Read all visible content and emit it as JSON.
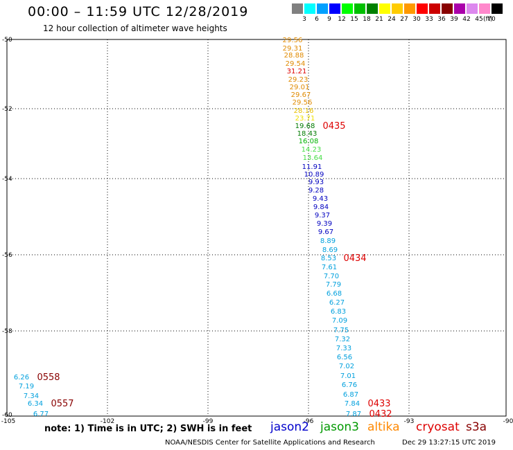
{
  "header": {
    "title": "00:00 – 11:59 UTC 12/28/2019",
    "subtitle": "12 hour collection of altimeter wave heights"
  },
  "legend": {
    "colors": [
      "#808080",
      "#00ffff",
      "#00a0ff",
      "#0000ff",
      "#00ff00",
      "#00c000",
      "#008000",
      "#ffff00",
      "#ffcc00",
      "#ff9900",
      "#ff0000",
      "#cc0000",
      "#880000",
      "#aa00aa",
      "#dd88ee",
      "#ff88cc",
      "#000000"
    ],
    "labels": [
      "3",
      "6",
      "9",
      "12",
      "15",
      "18",
      "21",
      "24",
      "27",
      "30",
      "33",
      "36",
      "39",
      "42",
      "45",
      "70",
      "(ft)"
    ]
  },
  "axes": {
    "x_ticks": [
      "-105",
      "-102",
      "-99",
      "-96",
      "-93",
      "-90"
    ],
    "y_ticks": [
      "-50",
      "-52",
      "-54",
      "-56",
      "-58",
      "-60"
    ]
  },
  "map": {
    "series": {
      "main_track": [
        {
          "label": "29.56",
          "color": "#e08a00"
        },
        {
          "label": "29.31",
          "color": "#e08a00"
        },
        {
          "label": "28.88",
          "color": "#e08a00"
        },
        {
          "label": "29.54",
          "color": "#e08a00"
        },
        {
          "label": "31.21",
          "color": "#dd0000"
        },
        {
          "label": "29.23",
          "color": "#e08a00"
        },
        {
          "label": "29.01",
          "color": "#e08a00"
        },
        {
          "label": "29.67",
          "color": "#e08a00"
        },
        {
          "label": "29.56",
          "color": "#e08a00"
        },
        {
          "label": "28.16",
          "color": "#e8c000"
        },
        {
          "label": "23.71",
          "color": "#f0e000"
        },
        {
          "label": "19.68",
          "color": "#007a00"
        },
        {
          "label": "18.43",
          "color": "#007a00"
        },
        {
          "label": "16.08",
          "color": "#00b400"
        },
        {
          "label": "14.23",
          "color": "#44dd44"
        },
        {
          "label": "13.64",
          "color": "#44dd44"
        },
        {
          "label": "11.91",
          "color": "#0000c0"
        },
        {
          "label": "10.89",
          "color": "#0000c0"
        },
        {
          "label": "9.93",
          "color": "#0000c0"
        },
        {
          "label": "9.28",
          "color": "#0000c0"
        },
        {
          "label": "9.43",
          "color": "#0000c0"
        },
        {
          "label": "9.84",
          "color": "#0000c0"
        },
        {
          "label": "9.37",
          "color": "#0000c0"
        },
        {
          "label": "9.39",
          "color": "#0000c0"
        },
        {
          "label": "9.67",
          "color": "#0000c0"
        },
        {
          "label": "8.89",
          "color": "#00a0dd"
        },
        {
          "label": "8.69",
          "color": "#00a0dd"
        },
        {
          "label": "8.53",
          "color": "#00a0dd"
        },
        {
          "label": "7.61",
          "color": "#00a0dd"
        },
        {
          "label": "7.70",
          "color": "#00a0dd"
        },
        {
          "label": "7.79",
          "color": "#00a0dd"
        },
        {
          "label": "6.68",
          "color": "#00a0dd"
        },
        {
          "label": "6.27",
          "color": "#00a0dd"
        },
        {
          "label": "6.83",
          "color": "#00a0dd"
        },
        {
          "label": "7.09",
          "color": "#00a0dd"
        },
        {
          "label": "7.75",
          "color": "#00a0dd"
        },
        {
          "label": "7.32",
          "color": "#00a0dd"
        },
        {
          "label": "7.33",
          "color": "#00a0dd"
        },
        {
          "label": "6.56",
          "color": "#00a0dd"
        },
        {
          "label": "7.02",
          "color": "#00a0dd"
        },
        {
          "label": "7.01",
          "color": "#00a0dd"
        },
        {
          "label": "6.76",
          "color": "#00a0dd"
        },
        {
          "label": "6.87",
          "color": "#00a0dd"
        },
        {
          "label": "7.84",
          "color": "#00a0dd"
        },
        {
          "label": "7.87",
          "color": "#00a0dd"
        }
      ],
      "left_track": [
        {
          "label": "6.26",
          "color": "#00a0dd"
        },
        {
          "label": "7.19",
          "color": "#00a0dd"
        },
        {
          "label": "7.34",
          "color": "#00a0dd"
        },
        {
          "label": "6.34",
          "color": "#00a0dd"
        },
        {
          "label": "6.77",
          "color": "#00a0dd"
        }
      ]
    },
    "time_labels": [
      {
        "label": "0435",
        "color": "#dd0000"
      },
      {
        "label": "0434",
        "color": "#dd0000"
      },
      {
        "label": "0433",
        "color": "#dd0000"
      },
      {
        "label": "0432",
        "color": "#dd0000"
      },
      {
        "label": "0558",
        "color": "#880000"
      },
      {
        "label": "0557",
        "color": "#880000"
      }
    ]
  },
  "footer": {
    "note": "note: 1) Time is in UTC; 2) SWH is in feet",
    "satellites": [
      {
        "label": "jason2",
        "color": "#0000cc"
      },
      {
        "label": "jason3",
        "color": "#009900"
      },
      {
        "label": "altika",
        "color": "#ff8800"
      },
      {
        "label": "cryosat",
        "color": "#dd0000"
      },
      {
        "label": "s3a",
        "color": "#880000"
      }
    ],
    "credit": "NOAA/NESDIS Center for Satellite Applications and Research",
    "timestamp": "Dec 29 13:27:15 UTC 2019"
  }
}
